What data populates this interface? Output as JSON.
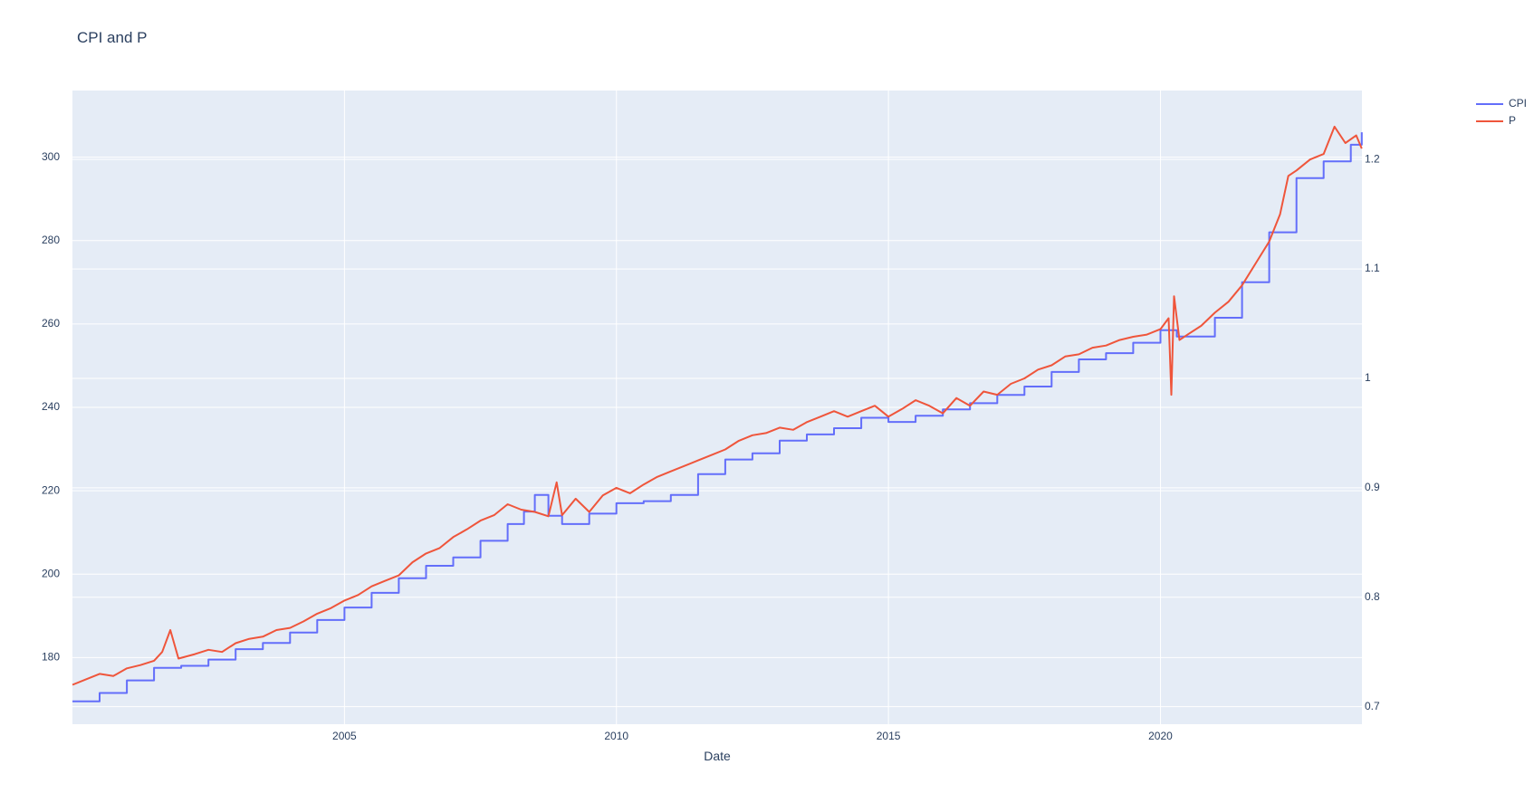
{
  "chart_data": {
    "type": "line",
    "title": "CPI and P",
    "xlabel": "Date",
    "ylabel": "",
    "y2label": "",
    "x_range": [
      "2000-01-01",
      "2023-09-15"
    ],
    "x_ticks": [
      2005,
      2010,
      2015,
      2020
    ],
    "ylim": [
      164,
      316
    ],
    "y_ticks": [
      180,
      200,
      220,
      240,
      260,
      280,
      300
    ],
    "y2lim": [
      0.684,
      1.263
    ],
    "y2_ticks": [
      0.7,
      0.8,
      0.9,
      1,
      1.1,
      1.2
    ],
    "y2_tick_labels": [
      "0.7",
      "0.8",
      "0.9",
      "1",
      "1.1",
      "1.2"
    ],
    "grid": true,
    "legend_position": "top-right",
    "colors": {
      "CPI": "#636efa",
      "P": "#ef553b",
      "plot_bg": "#e5ecf6",
      "grid": "#ffffff",
      "text": "#2a3f5f"
    },
    "series": [
      {
        "name": "CPI",
        "axis": "y",
        "line_shape": "step",
        "x": [
          2000.0,
          2000.5,
          2001.0,
          2001.5,
          2002.0,
          2002.5,
          2003.0,
          2003.5,
          2004.0,
          2004.5,
          2005.0,
          2005.5,
          2006.0,
          2006.5,
          2007.0,
          2007.5,
          2008.0,
          2008.3,
          2008.5,
          2008.75,
          2009.0,
          2009.5,
          2010.0,
          2010.5,
          2011.0,
          2011.5,
          2012.0,
          2012.5,
          2013.0,
          2013.5,
          2014.0,
          2014.5,
          2015.0,
          2015.5,
          2016.0,
          2016.5,
          2017.0,
          2017.5,
          2018.0,
          2018.5,
          2019.0,
          2019.5,
          2020.0,
          2020.3,
          2020.5,
          2021.0,
          2021.5,
          2022.0,
          2022.5,
          2023.0,
          2023.5,
          2023.7
        ],
        "values": [
          169.5,
          171.5,
          174.5,
          177.5,
          178.0,
          179.5,
          182.0,
          183.5,
          186.0,
          189.0,
          192.0,
          195.5,
          199.0,
          202.0,
          204.0,
          208.0,
          212.0,
          215.0,
          219.0,
          214.0,
          212.0,
          214.5,
          217.0,
          217.5,
          219.0,
          224.0,
          227.5,
          229.0,
          232.0,
          233.5,
          235.0,
          237.5,
          236.5,
          238.0,
          239.5,
          241.0,
          243.0,
          245.0,
          248.5,
          251.5,
          253.0,
          255.5,
          258.5,
          257.0,
          257.0,
          261.5,
          270.0,
          282.0,
          295.0,
          299.0,
          303.0,
          306.0
        ]
      },
      {
        "name": "P",
        "axis": "y2",
        "line_shape": "linear",
        "x": [
          2000.0,
          2000.25,
          2000.5,
          2000.75,
          2001.0,
          2001.25,
          2001.5,
          2001.65,
          2001.8,
          2001.95,
          2002.25,
          2002.5,
          2002.75,
          2003.0,
          2003.25,
          2003.5,
          2003.75,
          2004.0,
          2004.25,
          2004.5,
          2004.75,
          2005.0,
          2005.25,
          2005.5,
          2005.75,
          2006.0,
          2006.25,
          2006.5,
          2006.75,
          2007.0,
          2007.25,
          2007.5,
          2007.75,
          2008.0,
          2008.25,
          2008.5,
          2008.75,
          2008.9,
          2009.0,
          2009.25,
          2009.5,
          2009.75,
          2010.0,
          2010.25,
          2010.5,
          2010.75,
          2011.0,
          2011.25,
          2011.5,
          2011.75,
          2012.0,
          2012.25,
          2012.5,
          2012.75,
          2013.0,
          2013.25,
          2013.5,
          2013.75,
          2014.0,
          2014.25,
          2014.5,
          2014.75,
          2015.0,
          2015.25,
          2015.5,
          2015.75,
          2016.0,
          2016.25,
          2016.5,
          2016.75,
          2017.0,
          2017.25,
          2017.5,
          2017.75,
          2018.0,
          2018.25,
          2018.5,
          2018.75,
          2019.0,
          2019.25,
          2019.5,
          2019.75,
          2020.0,
          2020.15,
          2020.2,
          2020.25,
          2020.35,
          2020.5,
          2020.75,
          2021.0,
          2021.25,
          2021.5,
          2021.75,
          2022.0,
          2022.2,
          2022.35,
          2022.5,
          2022.75,
          2023.0,
          2023.2,
          2023.4,
          2023.6,
          2023.7
        ],
        "values": [
          0.72,
          0.725,
          0.73,
          0.728,
          0.735,
          0.738,
          0.742,
          0.75,
          0.77,
          0.744,
          0.748,
          0.752,
          0.75,
          0.758,
          0.762,
          0.764,
          0.77,
          0.772,
          0.778,
          0.785,
          0.79,
          0.797,
          0.802,
          0.81,
          0.815,
          0.82,
          0.832,
          0.84,
          0.845,
          0.855,
          0.862,
          0.87,
          0.875,
          0.885,
          0.88,
          0.878,
          0.874,
          0.905,
          0.875,
          0.89,
          0.878,
          0.893,
          0.9,
          0.895,
          0.903,
          0.91,
          0.915,
          0.92,
          0.925,
          0.93,
          0.935,
          0.943,
          0.948,
          0.95,
          0.955,
          0.953,
          0.96,
          0.965,
          0.97,
          0.965,
          0.97,
          0.975,
          0.965,
          0.972,
          0.98,
          0.975,
          0.968,
          0.982,
          0.975,
          0.988,
          0.985,
          0.995,
          1.0,
          1.008,
          1.012,
          1.02,
          1.022,
          1.028,
          1.03,
          1.035,
          1.038,
          1.04,
          1.045,
          1.055,
          0.985,
          1.075,
          1.035,
          1.04,
          1.048,
          1.06,
          1.07,
          1.085,
          1.105,
          1.125,
          1.15,
          1.185,
          1.19,
          1.2,
          1.205,
          1.23,
          1.215,
          1.222,
          1.21
        ]
      }
    ]
  }
}
